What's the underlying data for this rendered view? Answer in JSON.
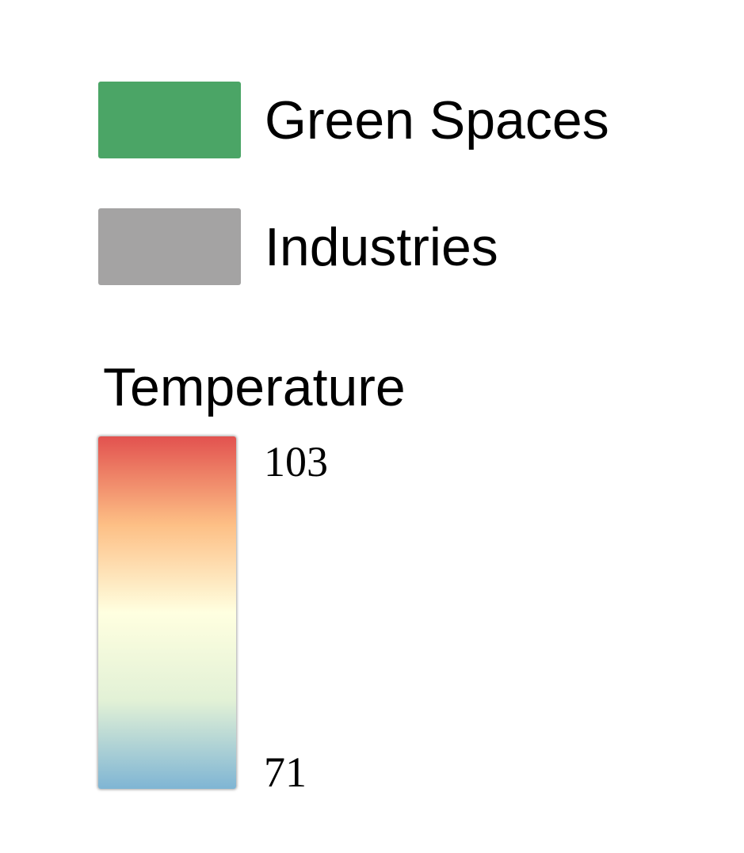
{
  "legend": {
    "categories": [
      {
        "label": "Green Spaces",
        "color": "#4ba566"
      },
      {
        "label": "Industries",
        "color": "#a4a3a3"
      }
    ],
    "temperature": {
      "title": "Temperature",
      "max_label": "103",
      "min_label": "71",
      "gradient_colors_top_to_bottom": [
        "#e2524f",
        "#fdbf85",
        "#ffffe0",
        "#e2f1d6",
        "#7fb5d4"
      ]
    }
  }
}
